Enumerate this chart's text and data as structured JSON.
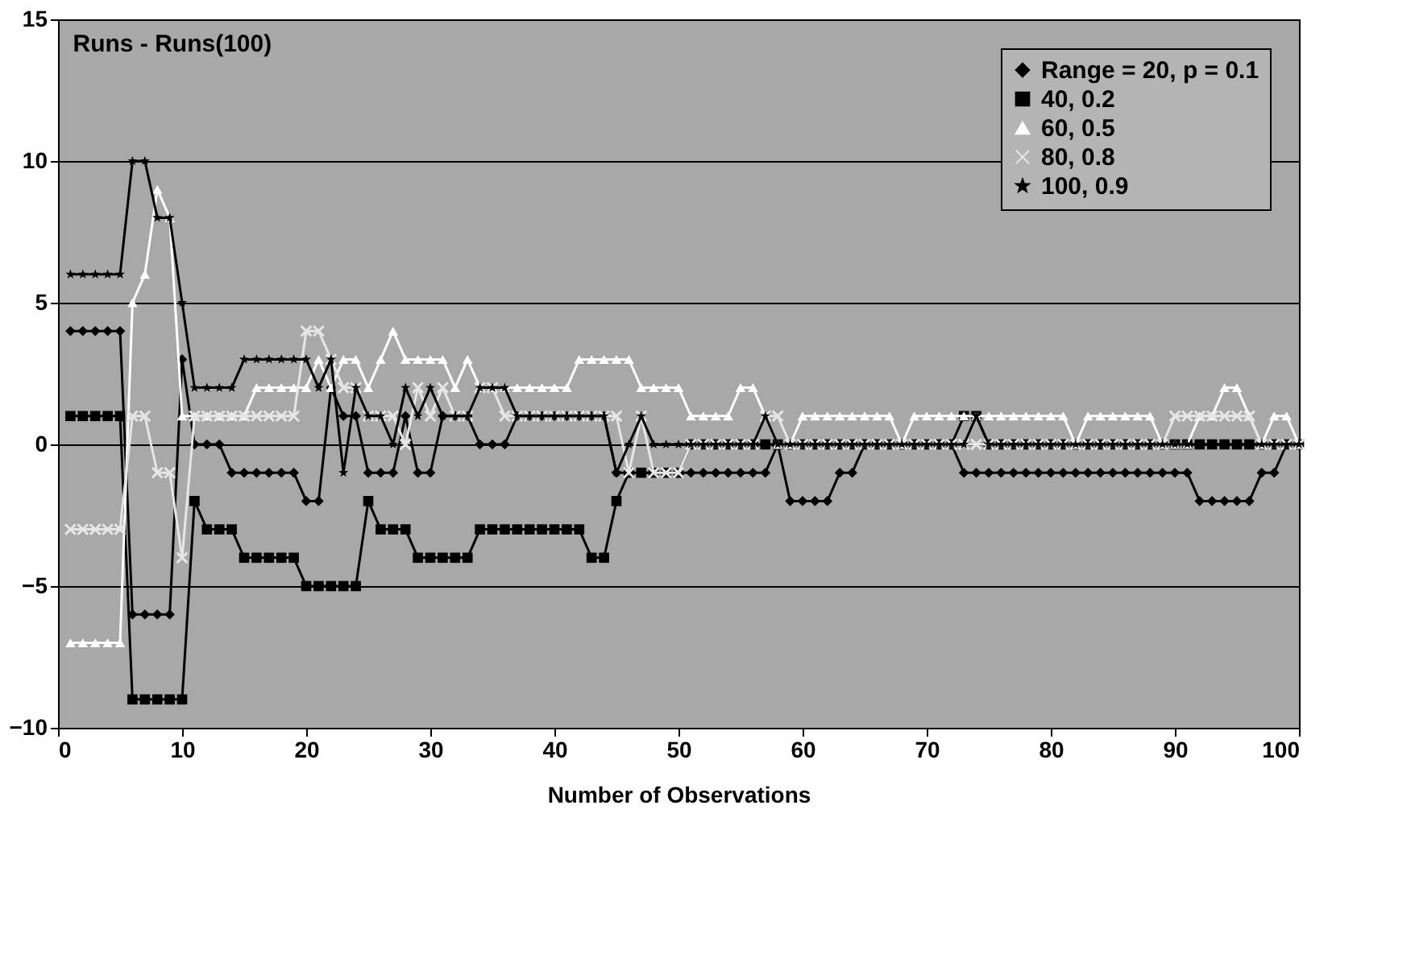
{
  "chart_data": {
    "type": "line",
    "title": "Runs - Runs(100)",
    "xlabel": "Number of Observations",
    "x": [
      1,
      2,
      3,
      4,
      5,
      6,
      7,
      8,
      9,
      10,
      11,
      12,
      13,
      14,
      15,
      16,
      17,
      18,
      19,
      20,
      21,
      22,
      23,
      24,
      25,
      26,
      27,
      28,
      29,
      30,
      31,
      32,
      33,
      34,
      35,
      36,
      37,
      38,
      39,
      40,
      41,
      42,
      43,
      44,
      45,
      46,
      47,
      48,
      49,
      50,
      51,
      52,
      53,
      54,
      55,
      56,
      57,
      58,
      59,
      60,
      61,
      62,
      63,
      64,
      65,
      66,
      67,
      68,
      69,
      70,
      71,
      72,
      73,
      74,
      75,
      76,
      77,
      78,
      79,
      80,
      81,
      82,
      83,
      84,
      85,
      86,
      87,
      88,
      89,
      90,
      91,
      92,
      93,
      94,
      95,
      96,
      97,
      98,
      99,
      100
    ],
    "series": [
      {
        "name": "Range = 20, p = 0.1",
        "color": "#000000",
        "marker": "diamond",
        "values": [
          4,
          4,
          4,
          4,
          4,
          -6,
          -6,
          -6,
          -6,
          3,
          0,
          0,
          0,
          -1,
          -1,
          -1,
          -1,
          -1,
          -1,
          -2,
          -2,
          2,
          1,
          1,
          -1,
          -1,
          -1,
          1,
          -1,
          -1,
          1,
          1,
          1,
          0,
          0,
          0,
          1,
          1,
          1,
          1,
          1,
          1,
          1,
          1,
          -1,
          -1,
          -1,
          -1,
          -1,
          -1,
          -1,
          -1,
          -1,
          -1,
          -1,
          -1,
          -1,
          0,
          -2,
          -2,
          -2,
          -2,
          -1,
          -1,
          0,
          0,
          0,
          0,
          0,
          0,
          0,
          0,
          -1,
          -1,
          -1,
          -1,
          -1,
          -1,
          -1,
          -1,
          -1,
          -1,
          -1,
          -1,
          -1,
          -1,
          -1,
          -1,
          -1,
          -1,
          -1,
          -2,
          -2,
          -2,
          -2,
          -2,
          -1,
          -1,
          0,
          0
        ]
      },
      {
        "name": "40, 0.2",
        "color": "#000000",
        "marker": "square",
        "values": [
          1,
          1,
          1,
          1,
          1,
          -9,
          -9,
          -9,
          -9,
          -9,
          -2,
          -3,
          -3,
          -3,
          -4,
          -4,
          -4,
          -4,
          -4,
          -5,
          -5,
          -5,
          -5,
          -5,
          -2,
          -3,
          -3,
          -3,
          -4,
          -4,
          -4,
          -4,
          -4,
          -3,
          -3,
          -3,
          -3,
          -3,
          -3,
          -3,
          -3,
          -3,
          -4,
          -4,
          -2,
          -1,
          -1,
          -1,
          -1,
          -1,
          0,
          0,
          0,
          0,
          0,
          0,
          0,
          0,
          0,
          0,
          0,
          0,
          0,
          0,
          0,
          0,
          0,
          0,
          0,
          0,
          0,
          0,
          1,
          1,
          0,
          0,
          0,
          0,
          0,
          0,
          0,
          0,
          0,
          0,
          0,
          0,
          0,
          0,
          0,
          0,
          0,
          0,
          0,
          0,
          0,
          0,
          0,
          0,
          0,
          0
        ]
      },
      {
        "name": "60, 0.5",
        "color": "#ffffff",
        "marker": "triangle",
        "values": [
          -7,
          -7,
          -7,
          -7,
          -7,
          5,
          6,
          9,
          8,
          1,
          1,
          1,
          1,
          1,
          1,
          2,
          2,
          2,
          2,
          2,
          3,
          2,
          3,
          3,
          2,
          3,
          4,
          3,
          3,
          3,
          3,
          2,
          3,
          2,
          2,
          2,
          2,
          2,
          2,
          2,
          2,
          3,
          3,
          3,
          3,
          3,
          2,
          2,
          2,
          2,
          1,
          1,
          1,
          1,
          2,
          2,
          1,
          0,
          0,
          1,
          1,
          1,
          1,
          1,
          1,
          1,
          1,
          0,
          1,
          1,
          1,
          1,
          1,
          1,
          1,
          1,
          1,
          1,
          1,
          1,
          1,
          0,
          1,
          1,
          1,
          1,
          1,
          1,
          0,
          0,
          0,
          1,
          1,
          2,
          2,
          1,
          0,
          1,
          1,
          0
        ]
      },
      {
        "name": "80, 0.8",
        "color": "#e6e6e6",
        "marker": "cross",
        "values": [
          -3,
          -3,
          -3,
          -3,
          -3,
          1,
          1,
          -1,
          -1,
          -4,
          1,
          1,
          1,
          1,
          1,
          1,
          1,
          1,
          1,
          4,
          4,
          3,
          2,
          2,
          1,
          1,
          1,
          0,
          2,
          1,
          2,
          1,
          1,
          2,
          2,
          1,
          1,
          1,
          1,
          1,
          1,
          1,
          1,
          1,
          1,
          -1,
          1,
          -1,
          -1,
          -1,
          0,
          0,
          0,
          0,
          0,
          0,
          1,
          1,
          0,
          0,
          0,
          0,
          0,
          0,
          0,
          0,
          0,
          0,
          0,
          0,
          0,
          0,
          0,
          0,
          0,
          0,
          0,
          0,
          0,
          0,
          0,
          0,
          0,
          0,
          0,
          0,
          0,
          0,
          0,
          1,
          1,
          1,
          1,
          1,
          1,
          1,
          0,
          0,
          0,
          0
        ]
      },
      {
        "name": "100, 0.9",
        "color": "#000000",
        "marker": "star",
        "values": [
          6,
          6,
          6,
          6,
          6,
          10,
          10,
          8,
          8,
          5,
          2,
          2,
          2,
          2,
          3,
          3,
          3,
          3,
          3,
          3,
          2,
          3,
          -1,
          2,
          1,
          1,
          0,
          2,
          1,
          2,
          1,
          1,
          1,
          2,
          2,
          2,
          1,
          1,
          1,
          1,
          1,
          1,
          1,
          1,
          -1,
          0,
          1,
          0,
          0,
          0,
          0,
          0,
          0,
          0,
          0,
          0,
          1,
          0,
          0,
          0,
          0,
          0,
          0,
          0,
          0,
          0,
          0,
          0,
          0,
          0,
          0,
          0,
          0,
          1,
          0,
          0,
          0,
          0,
          0,
          0,
          0,
          0,
          0,
          0,
          0,
          0,
          0,
          0,
          0,
          0,
          0,
          0,
          0,
          0,
          0,
          0,
          0,
          0,
          0,
          0
        ]
      }
    ],
    "xlim": [
      0,
      100
    ],
    "xticks": [
      0,
      10,
      20,
      30,
      40,
      50,
      60,
      70,
      80,
      90,
      100
    ],
    "ylim": [
      -10,
      15
    ],
    "yticks": [
      -10,
      -5,
      0,
      5,
      10,
      15
    ],
    "grid": "y",
    "legend": "top right"
  }
}
